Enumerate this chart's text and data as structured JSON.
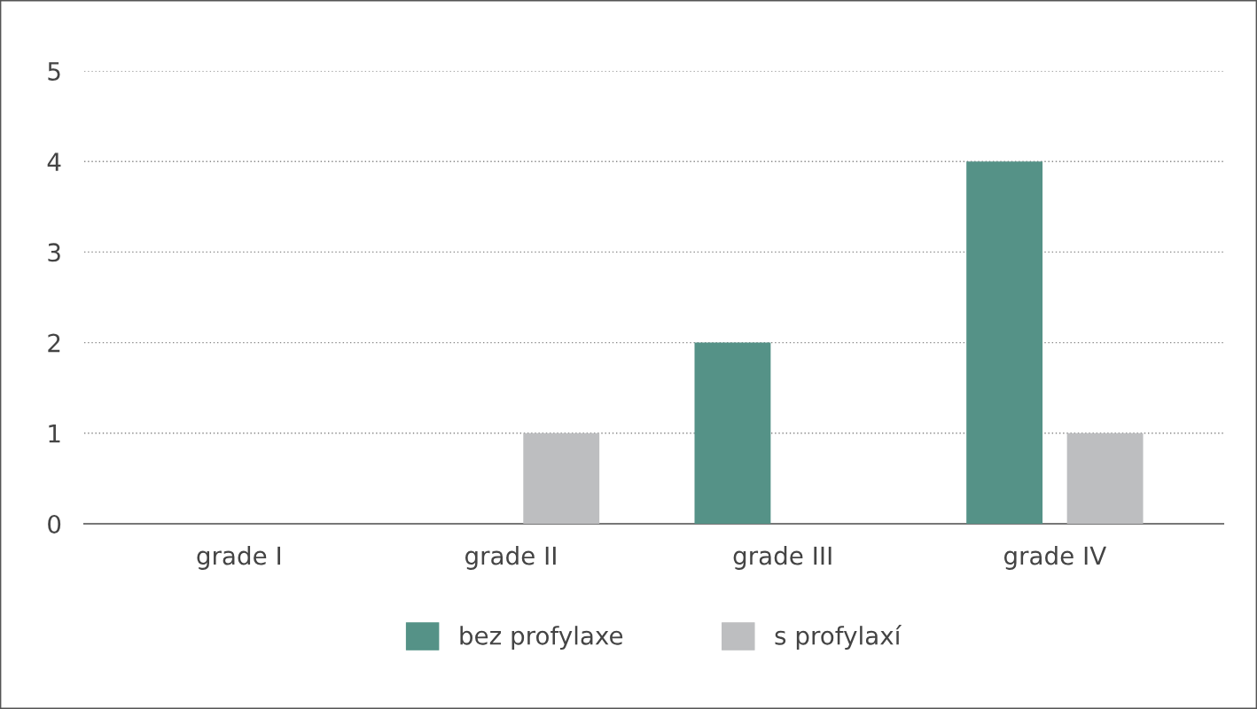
{
  "chart_data": {
    "type": "bar",
    "categories": [
      "grade I",
      "grade II",
      "grade III",
      "grade IV"
    ],
    "series": [
      {
        "name": "bez profylaxe",
        "color": "#559287",
        "values": [
          0,
          0,
          2,
          4
        ]
      },
      {
        "name": "s profylaxí",
        "color": "#bdbec0",
        "values": [
          0,
          1,
          0,
          1
        ]
      }
    ],
    "ylim": [
      0,
      5
    ],
    "yticks": [
      0,
      1,
      2,
      3,
      4,
      5
    ],
    "grid": "y",
    "legend": "bottom"
  }
}
